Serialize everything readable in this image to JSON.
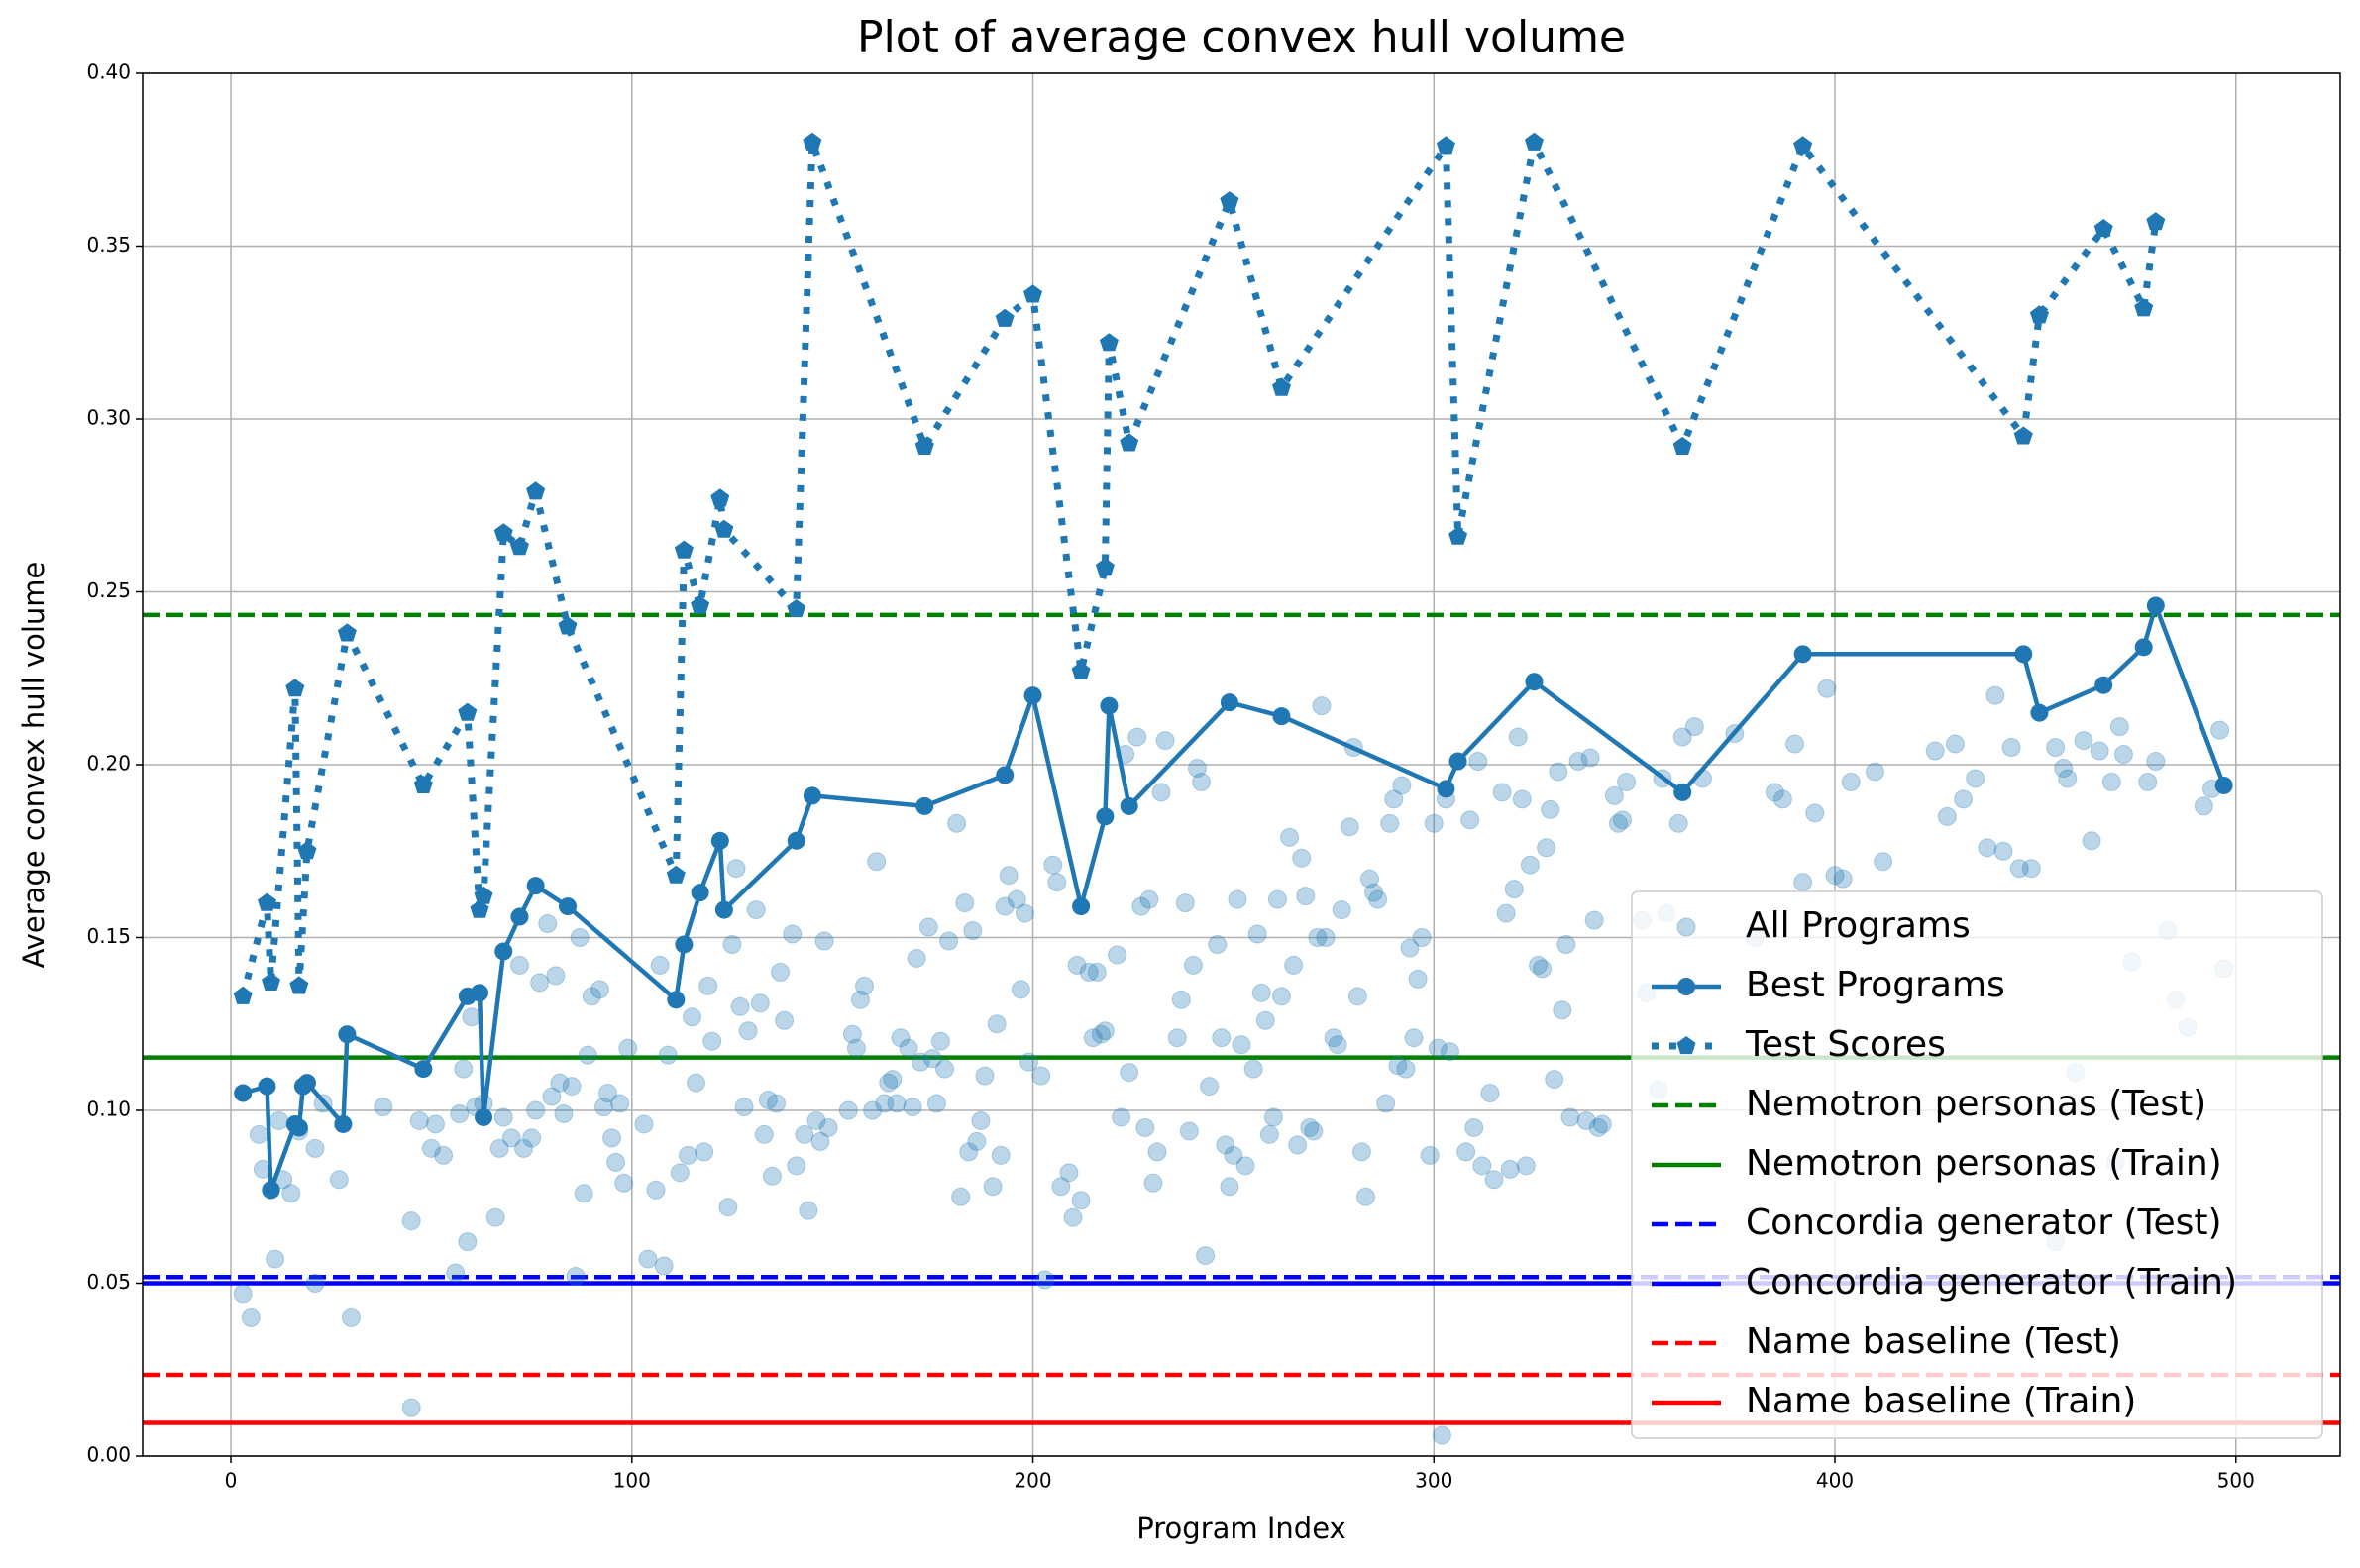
{
  "chart_data": {
    "type": "line",
    "title": "Plot of average convex hull volume",
    "xlabel": "Program Index",
    "ylabel": "Average convex hull volume",
    "xlim": [
      -22,
      526
    ],
    "ylim": [
      0,
      0.4
    ],
    "xticks": [
      0,
      100,
      200,
      300,
      400,
      500
    ],
    "yticks": [
      {
        "value": 0,
        "label": "0.00"
      },
      {
        "value": 0.05,
        "label": "0.05"
      },
      {
        "value": 0.1,
        "label": "0.10"
      },
      {
        "value": 0.15,
        "label": "0.15"
      },
      {
        "value": 0.2,
        "label": "0.20"
      },
      {
        "value": 0.25,
        "label": "0.25"
      },
      {
        "value": 0.3,
        "label": "0.30"
      },
      {
        "value": 0.35,
        "label": "0.35"
      },
      {
        "value": 0.4,
        "label": "0.40"
      }
    ],
    "grid": true,
    "legend": "lower right",
    "series": [
      {
        "name": "All Programs",
        "color": "#1f77b4",
        "mode": "markers",
        "x": [
          3,
          5,
          7,
          8,
          10,
          11,
          12,
          13,
          15,
          17,
          21,
          21,
          23,
          27,
          30,
          38,
          45,
          45,
          47,
          50,
          51,
          53,
          56,
          57,
          58,
          59,
          60,
          61,
          63,
          66,
          67,
          68,
          70,
          72,
          73,
          75,
          76,
          77,
          79,
          80,
          81,
          82,
          83,
          85,
          86,
          87,
          88,
          89,
          90,
          92,
          93,
          94,
          95,
          96,
          97,
          98,
          99,
          103,
          104,
          106,
          107,
          108,
          109,
          112,
          114,
          115,
          116,
          118,
          119,
          120,
          124,
          125,
          126,
          127,
          128,
          129,
          131,
          132,
          133,
          134,
          135,
          136,
          137,
          138,
          140,
          141,
          143,
          144,
          146,
          147,
          148,
          149,
          154,
          155,
          156,
          157,
          158,
          160,
          161,
          163,
          164,
          165,
          166,
          167,
          169,
          170,
          171,
          172,
          174,
          175,
          176,
          177,
          178,
          179,
          181,
          182,
          183,
          184,
          185,
          186,
          187,
          188,
          190,
          191,
          192,
          193,
          194,
          196,
          197,
          198,
          199,
          202,
          203,
          205,
          206,
          207,
          209,
          210,
          211,
          212,
          214,
          215,
          216,
          217,
          218,
          221,
          222,
          223,
          224,
          226,
          227,
          228,
          229,
          230,
          231,
          232,
          233,
          236,
          237,
          238,
          239,
          240,
          241,
          242,
          243,
          244,
          246,
          247,
          248,
          249,
          250,
          251,
          252,
          253,
          255,
          256,
          257,
          258,
          259,
          260,
          261,
          262,
          264,
          265,
          266,
          267,
          268,
          269,
          270,
          271,
          272,
          273,
          275,
          276,
          277,
          279,
          280,
          281,
          282,
          283,
          284,
          285,
          286,
          288,
          289,
          290,
          291,
          292,
          293,
          294,
          295,
          296,
          297,
          299,
          300,
          301,
          302,
          303,
          304,
          308,
          309,
          310,
          311,
          312,
          314,
          315,
          317,
          318,
          319,
          320,
          321,
          322,
          323,
          324,
          326,
          327,
          328,
          329,
          330,
          331,
          332,
          333,
          334,
          336,
          338,
          339,
          340,
          341,
          342,
          345,
          346,
          347,
          348,
          352,
          353,
          356,
          357,
          358,
          361,
          362,
          365,
          367,
          375,
          380,
          385,
          387,
          390,
          392,
          395,
          398,
          400,
          402,
          404,
          410,
          412,
          425,
          428,
          430,
          432,
          435,
          438,
          440,
          442,
          444,
          446,
          449,
          455,
          457,
          458,
          462,
          464,
          466,
          469,
          471,
          472,
          474,
          478,
          485,
          488,
          492,
          494,
          496,
          497,
          480,
          483,
          455,
          460,
          470
        ],
        "values": [
          0.047,
          0.04,
          0.093,
          0.083,
          0.077,
          0.057,
          0.097,
          0.08,
          0.076,
          0.094,
          0.05,
          0.089,
          0.102,
          0.08,
          0.04,
          0.101,
          0.068,
          0.014,
          0.097,
          0.089,
          0.096,
          0.087,
          0.053,
          0.099,
          0.112,
          0.062,
          0.127,
          0.101,
          0.102,
          0.069,
          0.089,
          0.098,
          0.092,
          0.142,
          0.089,
          0.092,
          0.1,
          0.137,
          0.154,
          0.104,
          0.139,
          0.108,
          0.099,
          0.107,
          0.052,
          0.15,
          0.076,
          0.116,
          0.133,
          0.135,
          0.101,
          0.105,
          0.092,
          0.085,
          0.102,
          0.079,
          0.118,
          0.096,
          0.057,
          0.077,
          0.142,
          0.055,
          0.116,
          0.082,
          0.087,
          0.127,
          0.108,
          0.088,
          0.136,
          0.12,
          0.072,
          0.148,
          0.17,
          0.13,
          0.101,
          0.123,
          0.158,
          0.131,
          0.093,
          0.103,
          0.081,
          0.102,
          0.14,
          0.126,
          0.151,
          0.084,
          0.093,
          0.071,
          0.097,
          0.091,
          0.149,
          0.095,
          0.1,
          0.122,
          0.118,
          0.132,
          0.136,
          0.1,
          0.172,
          0.102,
          0.108,
          0.109,
          0.102,
          0.121,
          0.118,
          0.101,
          0.144,
          0.114,
          0.153,
          0.115,
          0.102,
          0.12,
          0.112,
          0.149,
          0.183,
          0.075,
          0.16,
          0.088,
          0.152,
          0.091,
          0.097,
          0.11,
          0.078,
          0.125,
          0.087,
          0.159,
          0.168,
          0.161,
          0.135,
          0.157,
          0.114,
          0.11,
          0.051,
          0.171,
          0.166,
          0.078,
          0.082,
          0.069,
          0.142,
          0.074,
          0.14,
          0.121,
          0.14,
          0.122,
          0.123,
          0.145,
          0.098,
          0.203,
          0.111,
          0.208,
          0.159,
          0.095,
          0.161,
          0.079,
          0.088,
          0.192,
          0.207,
          0.121,
          0.132,
          0.16,
          0.094,
          0.142,
          0.199,
          0.195,
          0.058,
          0.107,
          0.148,
          0.121,
          0.09,
          0.078,
          0.087,
          0.161,
          0.119,
          0.084,
          0.112,
          0.151,
          0.134,
          0.126,
          0.093,
          0.098,
          0.161,
          0.133,
          0.179,
          0.142,
          0.09,
          0.173,
          0.162,
          0.095,
          0.094,
          0.15,
          0.217,
          0.15,
          0.121,
          0.119,
          0.158,
          0.182,
          0.205,
          0.133,
          0.088,
          0.075,
          0.167,
          0.163,
          0.161,
          0.102,
          0.183,
          0.19,
          0.113,
          0.194,
          0.112,
          0.147,
          0.121,
          0.138,
          0.15,
          0.087,
          0.183,
          0.118,
          0.006,
          0.19,
          0.117,
          0.088,
          0.184,
          0.095,
          0.201,
          0.084,
          0.105,
          0.08,
          0.192,
          0.157,
          0.083,
          0.164,
          0.208,
          0.19,
          0.084,
          0.171,
          0.142,
          0.141,
          0.176,
          0.187,
          0.109,
          0.198,
          0.129,
          0.148,
          0.098,
          0.201,
          0.097,
          0.202,
          0.155,
          0.095,
          0.096,
          0.191,
          0.183,
          0.184,
          0.195,
          0.155,
          0.134,
          0.106,
          0.196,
          0.157,
          0.183,
          0.208,
          0.211,
          0.196,
          0.209,
          0.15,
          0.192,
          0.19,
          0.206,
          0.166,
          0.186,
          0.222,
          0.168,
          0.167,
          0.195,
          0.198,
          0.172,
          0.204,
          0.185,
          0.206,
          0.19,
          0.196,
          0.176,
          0.22,
          0.175,
          0.205,
          0.17,
          0.17,
          0.205,
          0.199,
          0.196,
          0.207,
          0.178,
          0.204,
          0.195,
          0.211,
          0.203,
          0.143,
          0.195,
          0.132,
          0.124,
          0.188,
          0.193,
          0.21,
          0.141,
          0.201,
          0.152,
          0.062,
          0.111,
          0.085
        ]
      },
      {
        "name": "Best Programs",
        "color": "#1f77b4",
        "mode": "lines+markers",
        "marker": "circle",
        "x": [
          3,
          9,
          10,
          16,
          17,
          18,
          19,
          28,
          29,
          48,
          59,
          62,
          63,
          68,
          72,
          76,
          84,
          111,
          113,
          117,
          122,
          123,
          141,
          145,
          173,
          193,
          200,
          212,
          218,
          219,
          224,
          249,
          262,
          303,
          306,
          325,
          362,
          392,
          447,
          451,
          467,
          477,
          480,
          497
        ],
        "values": [
          0.105,
          0.107,
          0.077,
          0.096,
          0.095,
          0.107,
          0.108,
          0.096,
          0.122,
          0.112,
          0.133,
          0.134,
          0.098,
          0.146,
          0.156,
          0.165,
          0.159,
          0.132,
          0.148,
          0.163,
          0.178,
          0.158,
          0.178,
          0.191,
          0.188,
          0.197,
          0.22,
          0.159,
          0.185,
          0.217,
          0.188,
          0.218,
          0.214,
          0.193,
          0.201,
          0.224,
          0.192,
          0.232,
          0.232,
          0.215,
          0.223,
          0.234,
          0.246,
          0.194
        ]
      },
      {
        "name": "Test Scores",
        "color": "#1f77b4",
        "mode": "dotted+markers",
        "marker": "pentagon",
        "x": [
          3,
          9,
          10,
          16,
          17,
          19,
          29,
          48,
          59,
          62,
          63,
          68,
          72,
          76,
          84,
          111,
          113,
          117,
          122,
          123,
          141,
          145,
          173,
          193,
          200,
          212,
          218,
          219,
          224,
          249,
          262,
          303,
          306,
          325,
          362,
          392,
          447,
          451,
          467,
          477,
          480
        ],
        "values": [
          0.133,
          0.16,
          0.137,
          0.222,
          0.136,
          0.175,
          0.238,
          0.194,
          0.215,
          0.158,
          0.162,
          0.267,
          0.263,
          0.279,
          0.24,
          0.168,
          0.262,
          0.246,
          0.277,
          0.268,
          0.245,
          0.38,
          0.292,
          0.329,
          0.336,
          0.227,
          0.257,
          0.322,
          0.293,
          0.363,
          0.309,
          0.379,
          0.266,
          0.38,
          0.292,
          0.379,
          0.295,
          0.33,
          0.355,
          0.332,
          0.357
        ]
      }
    ],
    "reference_lines": [
      {
        "name": "Nemotron personas (Test)",
        "color": "#008000",
        "dash": true,
        "value": 0.2433
      },
      {
        "name": "Nemotron personas (Train)",
        "color": "#008000",
        "dash": false,
        "value": 0.1153
      },
      {
        "name": "Concordia generator (Test)",
        "color": "#0000ff",
        "dash": true,
        "value": 0.0518
      },
      {
        "name": "Concordia generator (Train)",
        "color": "#0000ff",
        "dash": false,
        "value": 0.05
      },
      {
        "name": "Name baseline (Test)",
        "color": "#ff0000",
        "dash": true,
        "value": 0.0235
      },
      {
        "name": "Name baseline (Train)",
        "color": "#ff0000",
        "dash": false,
        "value": 0.0096
      }
    ]
  }
}
